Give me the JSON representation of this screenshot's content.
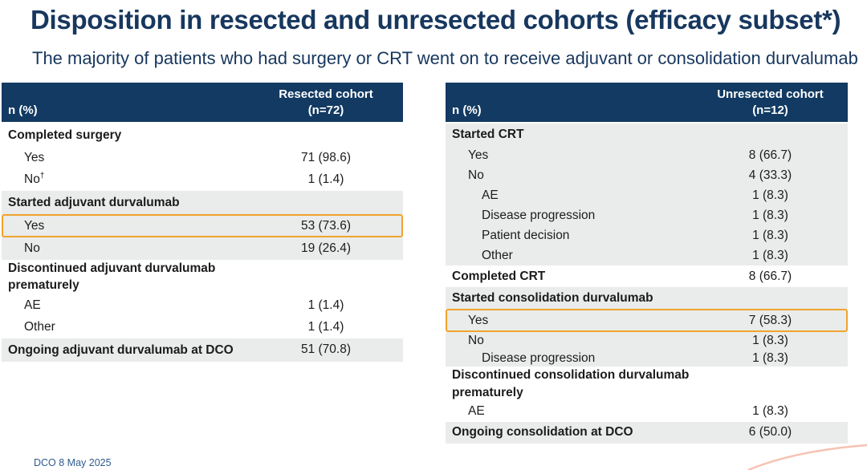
{
  "slide": {
    "title": "Disposition in resected and unresected cohorts (efficacy subset*)",
    "subtitle": "The majority of patients who had surgery or CRT went on to receive adjuvant or consolidation durvalumab",
    "footnote": "DCO 8 May 2025"
  },
  "colors": {
    "header_bg": "#123a62",
    "title_text": "#17375e",
    "section_gray": "#eaebeb",
    "highlight_border": "#f0a42e",
    "body_text": "#1c1c1c",
    "footnote_text": "#2f5d8f",
    "corner_accent": "#f6c2b2"
  },
  "tables": [
    {
      "id": "resected",
      "header": {
        "label": "n (%)",
        "cohort": "Resected cohort\n(n=72)"
      },
      "rows": [
        {
          "label": "Completed surgery",
          "section": true,
          "bg": "white"
        },
        {
          "label": "Yes",
          "value": "71 (98.6)",
          "indent": 1,
          "bg": "white"
        },
        {
          "label": "No",
          "sup": "†",
          "value": "1 (1.4)",
          "indent": 1,
          "bg": "white"
        },
        {
          "label": "Started adjuvant durvalumab",
          "section": true,
          "bg": "gray"
        },
        {
          "label": "Yes",
          "value": "53 (73.6)",
          "indent": 1,
          "bg": "gray",
          "highlight": true
        },
        {
          "label": "No",
          "value": "19 (26.4)",
          "indent": 1,
          "bg": "gray"
        },
        {
          "label": "Discontinued adjuvant durvalumab\nprematurely",
          "section": true,
          "bg": "white"
        },
        {
          "label": "AE",
          "value": "1 (1.4)",
          "indent": 1,
          "bg": "white"
        },
        {
          "label": "Other",
          "value": "1 (1.4)",
          "indent": 1,
          "bg": "white"
        },
        {
          "label": "Ongoing adjuvant durvalumab at DCO",
          "value": "51 (70.8)",
          "section": true,
          "bg": "gray"
        }
      ]
    },
    {
      "id": "unresected",
      "header": {
        "label": "n (%)",
        "cohort": "Unresected cohort\n(n=12)"
      },
      "rows": [
        {
          "label": "Started CRT",
          "section": true,
          "bg": "gray"
        },
        {
          "label": "Yes",
          "value": "8 (66.7)",
          "indent": 1,
          "bg": "gray"
        },
        {
          "label": "No",
          "value": "4 (33.3)",
          "indent": 1,
          "bg": "gray"
        },
        {
          "label": "AE",
          "value": "1 (8.3)",
          "indent": 2,
          "bg": "gray"
        },
        {
          "label": "Disease progression",
          "value": "1 (8.3)",
          "indent": 2,
          "bg": "gray"
        },
        {
          "label": "Patient decision",
          "value": "1 (8.3)",
          "indent": 2,
          "bg": "gray"
        },
        {
          "label": "Other",
          "value": "1 (8.3)",
          "indent": 2,
          "bg": "gray"
        },
        {
          "label": "Completed CRT",
          "value": "8 (66.7)",
          "section": true,
          "bg": "white"
        },
        {
          "label": "Started consolidation durvalumab",
          "section": true,
          "bg": "gray"
        },
        {
          "label": "Yes",
          "value": "7 (58.3)",
          "indent": 1,
          "bg": "gray",
          "highlight": true
        },
        {
          "label": "No",
          "value": "1 (8.3)",
          "indent": 1,
          "bg": "gray",
          "compact": true
        },
        {
          "label": "Disease progression",
          "value": "1 (8.3)",
          "indent": 2,
          "bg": "gray",
          "compact": true
        },
        {
          "label": "Discontinued consolidation durvalumab\nprematurely",
          "section": true,
          "bg": "white"
        },
        {
          "label": "AE",
          "value": "1 (8.3)",
          "indent": 1,
          "bg": "white"
        },
        {
          "label": "Ongoing consolidation at DCO",
          "value": "6 (50.0)",
          "section": true,
          "bg": "gray"
        }
      ]
    }
  ]
}
